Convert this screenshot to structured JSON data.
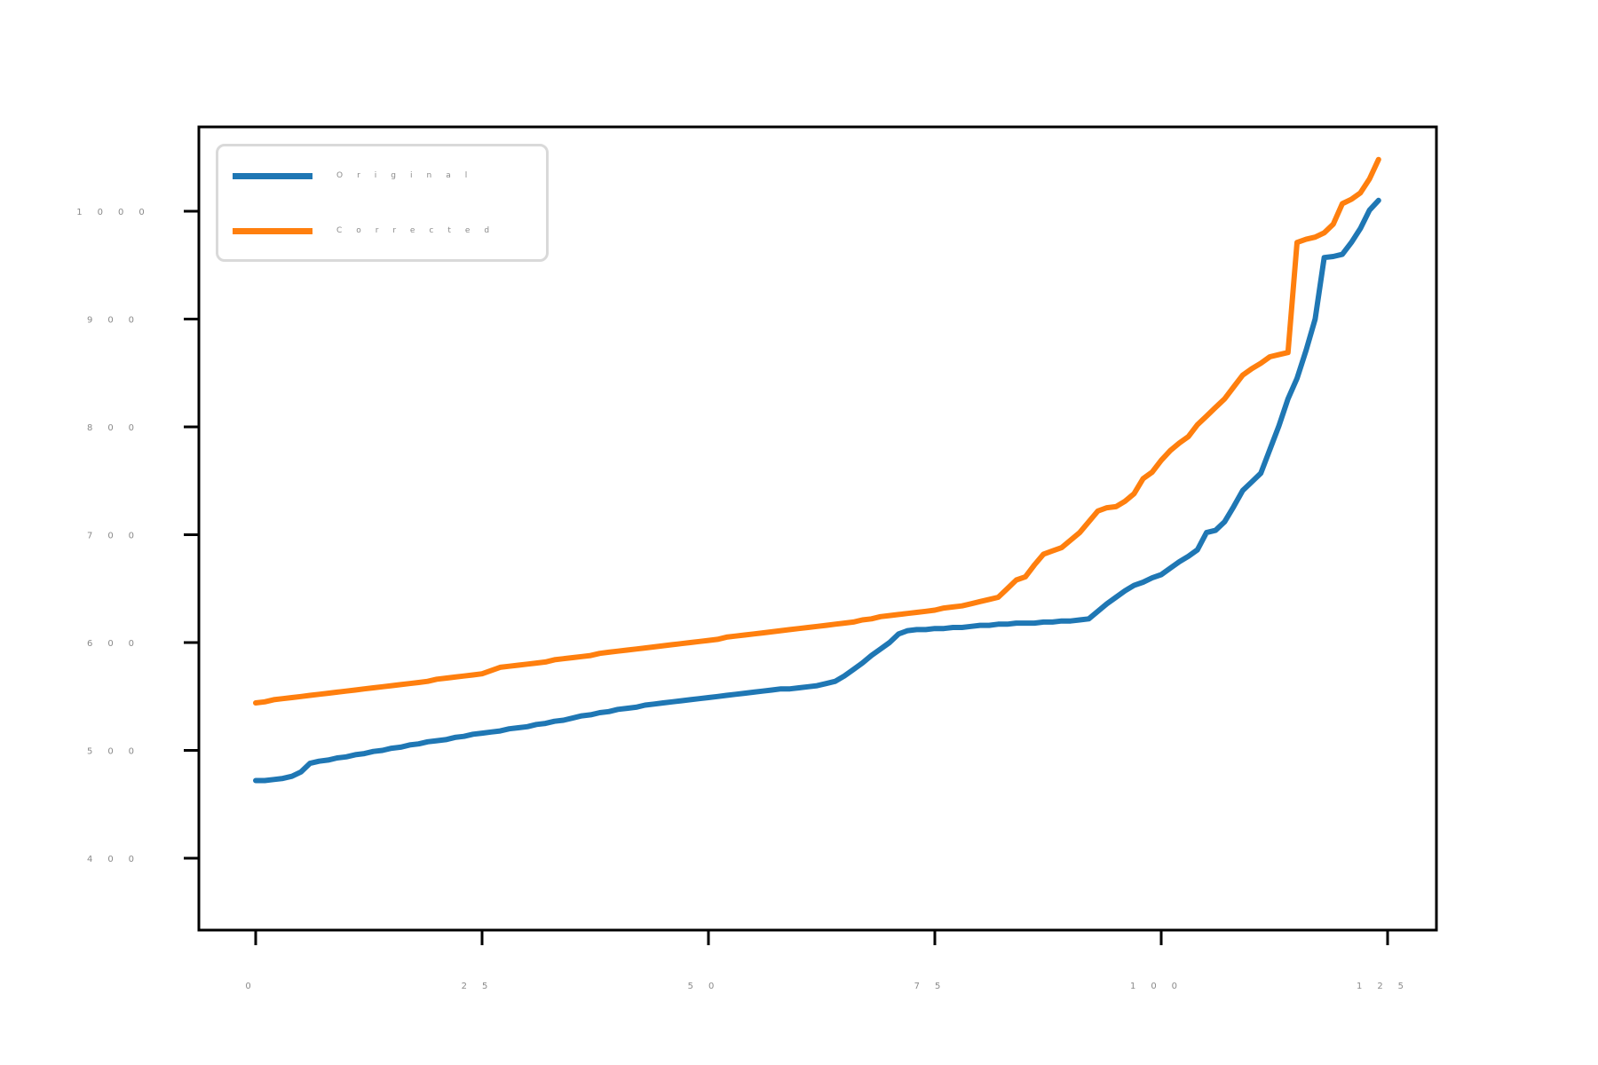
{
  "chart_data": {
    "type": "line",
    "title": "",
    "xlabel": "",
    "ylabel": "",
    "x_note": "x is the sample index, 0 to 124 (125 sorted samples per series)",
    "x_ticks": [
      0,
      25,
      50,
      75,
      100,
      125
    ],
    "y_ticks": [
      400,
      500,
      600,
      700,
      800,
      900,
      1000
    ],
    "xlim": [
      -6.3,
      130.4
    ],
    "ylim": [
      333,
      1078
    ],
    "grid": false,
    "legend_position": "upper left",
    "axis_color": "#000000",
    "tick_label_color": "#8a8a8a",
    "series": [
      {
        "name": "Original",
        "color": "#1f77b4",
        "values": [
          472,
          472,
          473,
          474,
          476,
          480,
          488,
          490,
          491,
          493,
          494,
          496,
          497,
          499,
          500,
          502,
          503,
          505,
          506,
          508,
          509,
          510,
          512,
          513,
          515,
          516,
          517,
          518,
          520,
          521,
          522,
          524,
          525,
          527,
          528,
          530,
          532,
          533,
          535,
          536,
          538,
          539,
          540,
          542,
          543,
          544,
          545,
          546,
          547,
          548,
          549,
          550,
          551,
          552,
          553,
          554,
          555,
          556,
          557,
          557,
          558,
          559,
          560,
          562,
          564,
          569,
          575,
          581,
          588,
          594,
          600,
          608,
          611,
          612,
          612,
          613,
          613,
          614,
          614,
          615,
          616,
          616,
          617,
          617,
          618,
          618,
          618,
          619,
          619,
          620,
          620,
          621,
          622,
          629,
          636,
          642,
          648,
          653,
          656,
          660,
          663,
          669,
          675,
          680,
          686,
          702,
          704,
          712,
          726,
          741,
          749,
          757,
          779,
          801,
          826,
          845,
          871,
          900,
          957,
          958,
          960,
          971,
          984,
          1001,
          1010
        ]
      },
      {
        "name": "Corrected",
        "color": "#ff7f0e",
        "values": [
          544,
          545,
          547,
          548,
          549,
          550,
          551,
          552,
          553,
          554,
          555,
          556,
          557,
          558,
          559,
          560,
          561,
          562,
          563,
          564,
          566,
          567,
          568,
          569,
          570,
          571,
          574,
          577,
          578,
          579,
          580,
          581,
          582,
          584,
          585,
          586,
          587,
          588,
          590,
          591,
          592,
          593,
          594,
          595,
          596,
          597,
          598,
          599,
          600,
          601,
          602,
          603,
          605,
          606,
          607,
          608,
          609,
          610,
          611,
          612,
          613,
          614,
          615,
          616,
          617,
          618,
          619,
          621,
          622,
          624,
          625,
          626,
          627,
          628,
          629,
          630,
          632,
          633,
          634,
          636,
          638,
          640,
          642,
          650,
          658,
          661,
          672,
          682,
          685,
          688,
          695,
          702,
          712,
          722,
          725,
          726,
          731,
          738,
          752,
          758,
          769,
          778,
          785,
          791,
          802,
          810,
          818,
          826,
          837,
          848,
          854,
          859,
          865,
          867,
          869,
          971,
          974,
          976,
          980,
          988,
          1007,
          1011,
          1017,
          1030,
          1048
        ]
      }
    ]
  },
  "legend": {
    "items": [
      {
        "label": "Original",
        "color": "#1f77b4"
      },
      {
        "label": "Corrected",
        "color": "#ff7f0e"
      }
    ]
  }
}
